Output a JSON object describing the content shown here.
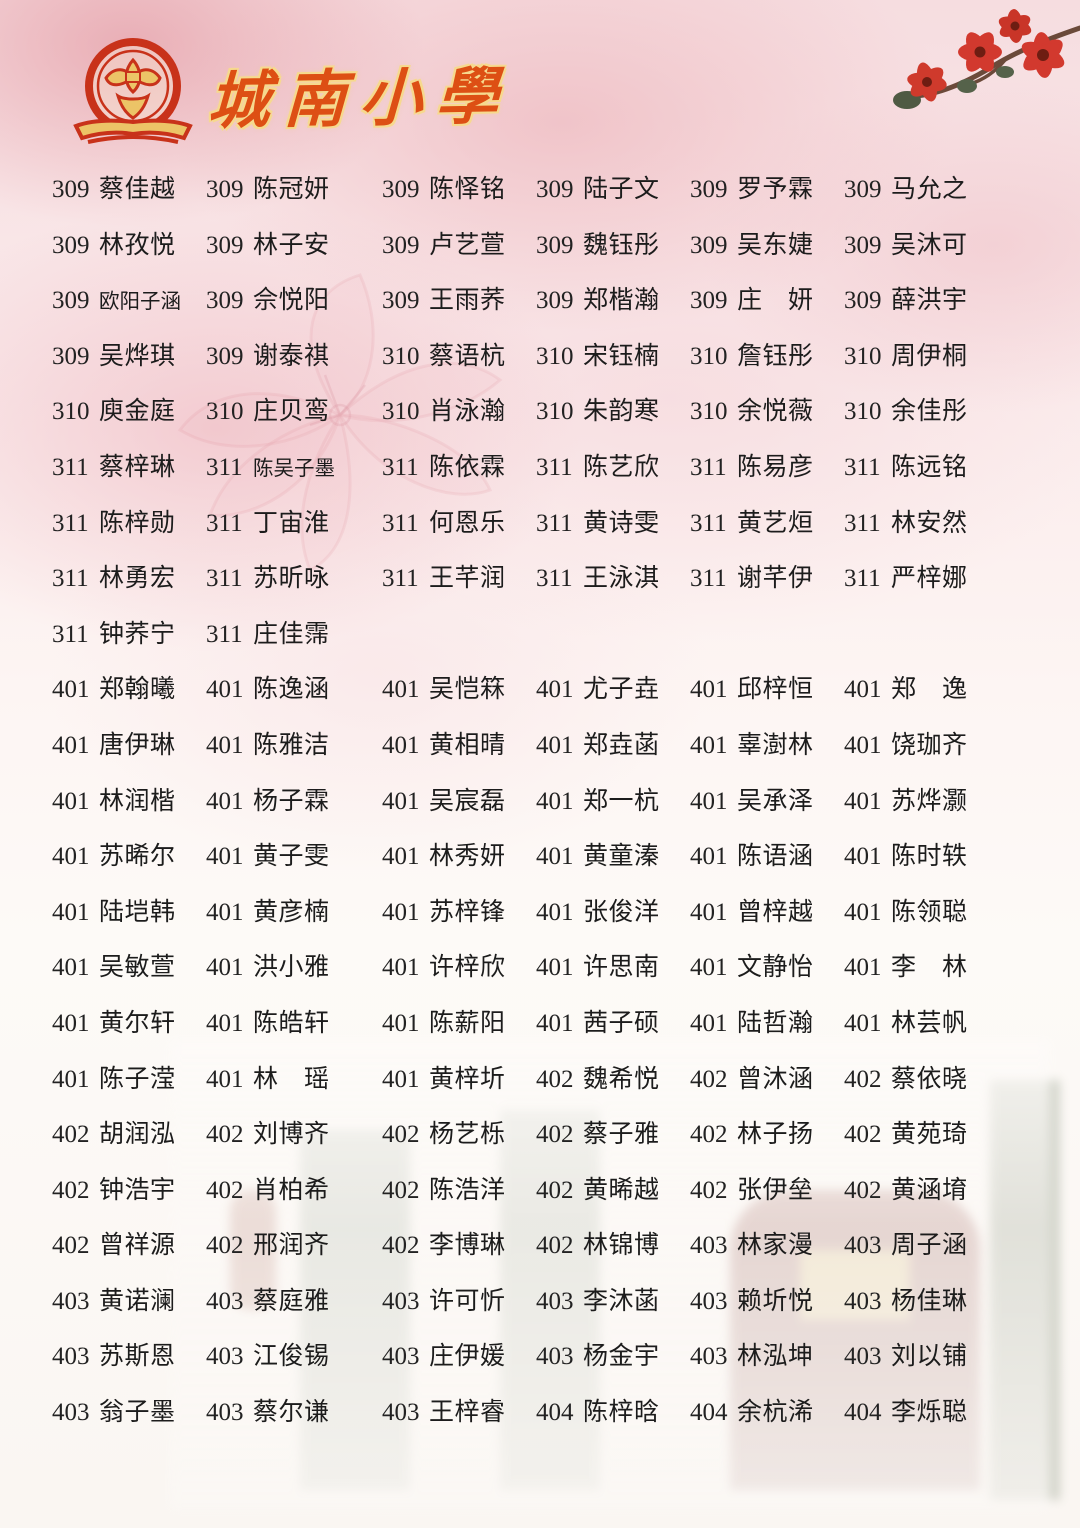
{
  "header": {
    "school_name": "城南小學"
  },
  "roster": {
    "rows": [
      [
        {
          "class_no": "309",
          "name": "蔡佳越"
        },
        {
          "class_no": "309",
          "name": "陈冠妍"
        },
        {
          "class_no": "309",
          "name": "陈怿铭"
        },
        {
          "class_no": "309",
          "name": "陆子文"
        },
        {
          "class_no": "309",
          "name": "罗予霖"
        },
        {
          "class_no": "309",
          "name": "马允之"
        }
      ],
      [
        {
          "class_no": "309",
          "name": "林孜悦"
        },
        {
          "class_no": "309",
          "name": "林子安"
        },
        {
          "class_no": "309",
          "name": "卢艺萱"
        },
        {
          "class_no": "309",
          "name": "魏钰彤"
        },
        {
          "class_no": "309",
          "name": "吴东婕"
        },
        {
          "class_no": "309",
          "name": "吴沐可"
        }
      ],
      [
        {
          "class_no": "309",
          "name": "欧阳子涵"
        },
        {
          "class_no": "309",
          "name": "佘悦阳"
        },
        {
          "class_no": "309",
          "name": "王雨荞"
        },
        {
          "class_no": "309",
          "name": "郑楷瀚"
        },
        {
          "class_no": "309",
          "name": "庄　妍"
        },
        {
          "class_no": "309",
          "name": "薛洪宇"
        }
      ],
      [
        {
          "class_no": "309",
          "name": "吴烨琪"
        },
        {
          "class_no": "309",
          "name": "谢泰祺"
        },
        {
          "class_no": "310",
          "name": "蔡语杭"
        },
        {
          "class_no": "310",
          "name": "宋钰楠"
        },
        {
          "class_no": "310",
          "name": "詹钰彤"
        },
        {
          "class_no": "310",
          "name": "周伊桐"
        }
      ],
      [
        {
          "class_no": "310",
          "name": "庾金庭"
        },
        {
          "class_no": "310",
          "name": "庄贝鸾"
        },
        {
          "class_no": "310",
          "name": "肖泳瀚"
        },
        {
          "class_no": "310",
          "name": "朱韵寒"
        },
        {
          "class_no": "310",
          "name": "余悦薇"
        },
        {
          "class_no": "310",
          "name": "余佳彤"
        }
      ],
      [
        {
          "class_no": "311",
          "name": "蔡梓琳"
        },
        {
          "class_no": "311",
          "name": "陈吴子墨"
        },
        {
          "class_no": "311",
          "name": "陈依霖"
        },
        {
          "class_no": "311",
          "name": "陈艺欣"
        },
        {
          "class_no": "311",
          "name": "陈易彦"
        },
        {
          "class_no": "311",
          "name": "陈远铭"
        }
      ],
      [
        {
          "class_no": "311",
          "name": "陈梓勋"
        },
        {
          "class_no": "311",
          "name": "丁宙淮"
        },
        {
          "class_no": "311",
          "name": "何恩乐"
        },
        {
          "class_no": "311",
          "name": "黄诗雯"
        },
        {
          "class_no": "311",
          "name": "黄艺烜"
        },
        {
          "class_no": "311",
          "name": "林安然"
        }
      ],
      [
        {
          "class_no": "311",
          "name": "林勇宏"
        },
        {
          "class_no": "311",
          "name": "苏昕咏"
        },
        {
          "class_no": "311",
          "name": "王芊润"
        },
        {
          "class_no": "311",
          "name": "王泳淇"
        },
        {
          "class_no": "311",
          "name": "谢芊伊"
        },
        {
          "class_no": "311",
          "name": "严梓娜"
        }
      ],
      [
        {
          "class_no": "311",
          "name": "钟荞宁"
        },
        {
          "class_no": "311",
          "name": "庄佳霈"
        }
      ],
      [
        {
          "class_no": "401",
          "name": "郑翰曦"
        },
        {
          "class_no": "401",
          "name": "陈逸涵"
        },
        {
          "class_no": "401",
          "name": "吴恺箖"
        },
        {
          "class_no": "401",
          "name": "尤子垚"
        },
        {
          "class_no": "401",
          "name": "邱梓恒"
        },
        {
          "class_no": "401",
          "name": "郑　逸"
        }
      ],
      [
        {
          "class_no": "401",
          "name": "唐伊琳"
        },
        {
          "class_no": "401",
          "name": "陈雅洁"
        },
        {
          "class_no": "401",
          "name": "黄相晴"
        },
        {
          "class_no": "401",
          "name": "郑垚菡"
        },
        {
          "class_no": "401",
          "name": "辜澍林"
        },
        {
          "class_no": "401",
          "name": "饶珈齐"
        }
      ],
      [
        {
          "class_no": "401",
          "name": "林润楷"
        },
        {
          "class_no": "401",
          "name": "杨子霖"
        },
        {
          "class_no": "401",
          "name": "吴宸磊"
        },
        {
          "class_no": "401",
          "name": "郑一杭"
        },
        {
          "class_no": "401",
          "name": "吴承泽"
        },
        {
          "class_no": "401",
          "name": "苏烨灏"
        }
      ],
      [
        {
          "class_no": "401",
          "name": "苏晞尔"
        },
        {
          "class_no": "401",
          "name": "黄子雯"
        },
        {
          "class_no": "401",
          "name": "林秀妍"
        },
        {
          "class_no": "401",
          "name": "黄童溱"
        },
        {
          "class_no": "401",
          "name": "陈语涵"
        },
        {
          "class_no": "401",
          "name": "陈时轶"
        }
      ],
      [
        {
          "class_no": "401",
          "name": "陆垲韩"
        },
        {
          "class_no": "401",
          "name": "黄彦楠"
        },
        {
          "class_no": "401",
          "name": "苏梓锋"
        },
        {
          "class_no": "401",
          "name": "张俊洋"
        },
        {
          "class_no": "401",
          "name": "曾梓越"
        },
        {
          "class_no": "401",
          "name": "陈领聪"
        }
      ],
      [
        {
          "class_no": "401",
          "name": "吴敏萱"
        },
        {
          "class_no": "401",
          "name": "洪小雅"
        },
        {
          "class_no": "401",
          "name": "许梓欣"
        },
        {
          "class_no": "401",
          "name": "许思南"
        },
        {
          "class_no": "401",
          "name": "文静怡"
        },
        {
          "class_no": "401",
          "name": "李　林"
        }
      ],
      [
        {
          "class_no": "401",
          "name": "黄尔轩"
        },
        {
          "class_no": "401",
          "name": "陈皓轩"
        },
        {
          "class_no": "401",
          "name": "陈薪阳"
        },
        {
          "class_no": "401",
          "name": "茜子硕"
        },
        {
          "class_no": "401",
          "name": "陆哲瀚"
        },
        {
          "class_no": "401",
          "name": "林芸帆"
        }
      ],
      [
        {
          "class_no": "401",
          "name": "陈子滢"
        },
        {
          "class_no": "401",
          "name": "林　瑶"
        },
        {
          "class_no": "401",
          "name": "黄梓圻"
        },
        {
          "class_no": "402",
          "name": "魏希悦"
        },
        {
          "class_no": "402",
          "name": "曾沐涵"
        },
        {
          "class_no": "402",
          "name": "蔡依晓"
        }
      ],
      [
        {
          "class_no": "402",
          "name": "胡润泓"
        },
        {
          "class_no": "402",
          "name": "刘博齐"
        },
        {
          "class_no": "402",
          "name": "杨艺栎"
        },
        {
          "class_no": "402",
          "name": "蔡子雅"
        },
        {
          "class_no": "402",
          "name": "林子扬"
        },
        {
          "class_no": "402",
          "name": "黄苑琦"
        }
      ],
      [
        {
          "class_no": "402",
          "name": "钟浩宇"
        },
        {
          "class_no": "402",
          "name": "肖柏希"
        },
        {
          "class_no": "402",
          "name": "陈浩洋"
        },
        {
          "class_no": "402",
          "name": "黄晞越"
        },
        {
          "class_no": "402",
          "name": "张伊垒"
        },
        {
          "class_no": "402",
          "name": "黄涵堉"
        }
      ],
      [
        {
          "class_no": "402",
          "name": "曾祥源"
        },
        {
          "class_no": "402",
          "name": "邢润齐"
        },
        {
          "class_no": "402",
          "name": "李博琳"
        },
        {
          "class_no": "402",
          "name": "林锦博"
        },
        {
          "class_no": "403",
          "name": "林家漫"
        },
        {
          "class_no": "403",
          "name": "周子涵"
        }
      ],
      [
        {
          "class_no": "403",
          "name": "黄诺澜"
        },
        {
          "class_no": "403",
          "name": "蔡庭雅"
        },
        {
          "class_no": "403",
          "name": "许可忻"
        },
        {
          "class_no": "403",
          "name": "李沐菡"
        },
        {
          "class_no": "403",
          "name": "赖圻悦"
        },
        {
          "class_no": "403",
          "name": "杨佳琳"
        }
      ],
      [
        {
          "class_no": "403",
          "name": "苏斯恩"
        },
        {
          "class_no": "403",
          "name": "江俊锡"
        },
        {
          "class_no": "403",
          "name": "庄伊媛"
        },
        {
          "class_no": "403",
          "name": "杨金宇"
        },
        {
          "class_no": "403",
          "name": "林泓坤"
        },
        {
          "class_no": "403",
          "name": "刘以铺"
        }
      ],
      [
        {
          "class_no": "403",
          "name": "翁子墨"
        },
        {
          "class_no": "403",
          "name": "蔡尔谦"
        },
        {
          "class_no": "403",
          "name": "王梓睿"
        },
        {
          "class_no": "404",
          "name": "陈梓晗"
        },
        {
          "class_no": "404",
          "name": "余杭浠"
        },
        {
          "class_no": "404",
          "name": "李烁聪"
        }
      ]
    ]
  }
}
